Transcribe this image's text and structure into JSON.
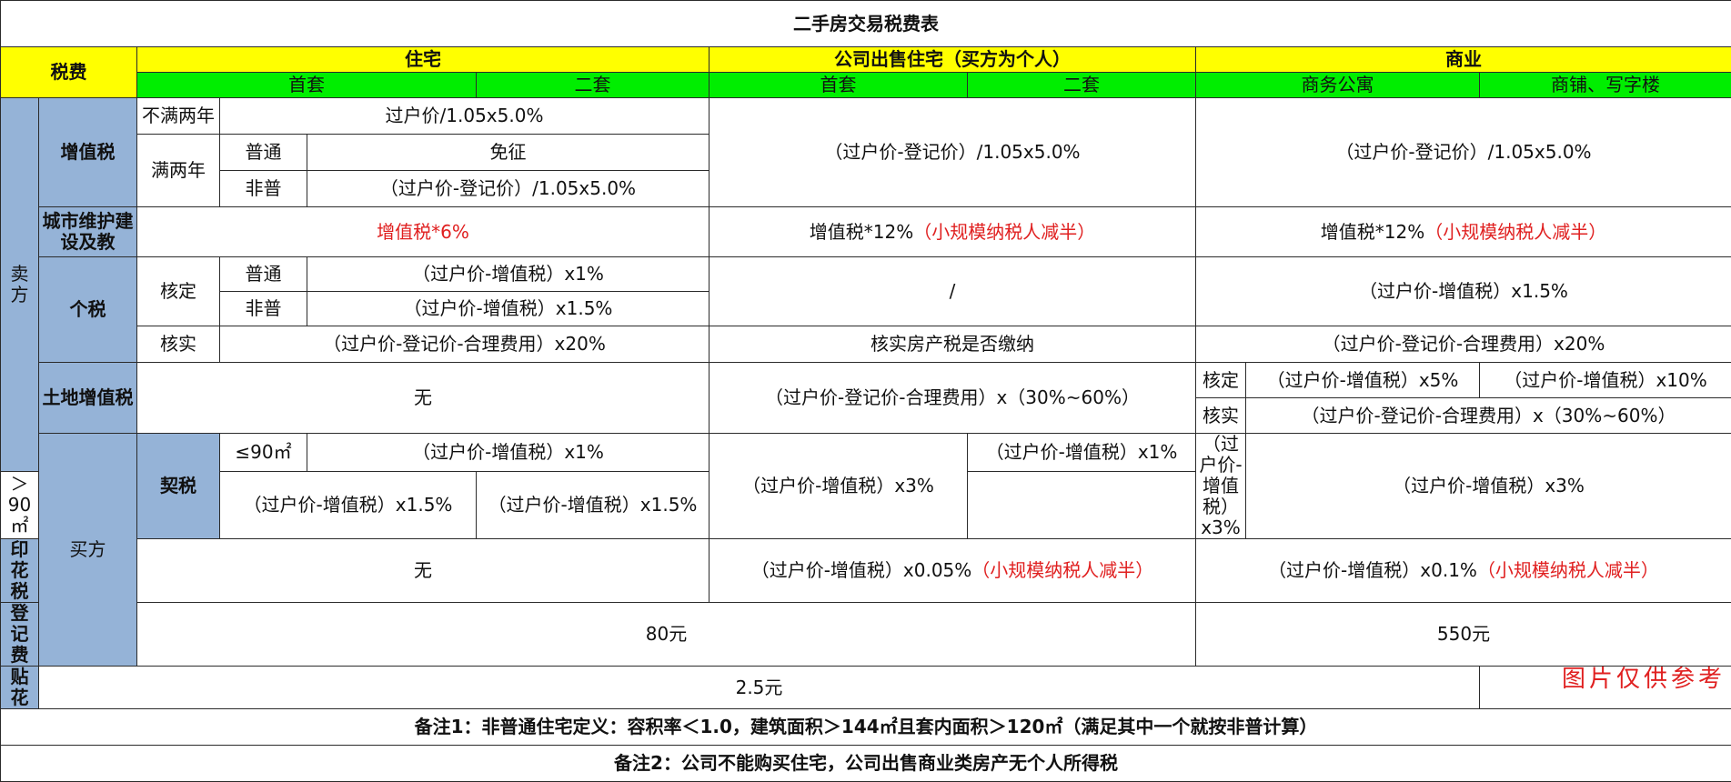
{
  "title": "二手房交易税费表",
  "header": {
    "tax_label": "税费",
    "residential": "住宅",
    "company_sale": "公司出售住宅（买方为个人）",
    "commercial": "商业",
    "first_home": "首套",
    "second_home": "二套",
    "company_first": "首套",
    "company_second": "二套",
    "business_apartment": "商务公寓",
    "shop_office": "商铺、写字楼"
  },
  "side": {
    "seller": "卖方",
    "buyer": "买方"
  },
  "vat": {
    "label": "增值税",
    "under_two": "不满两年",
    "under_two_value": "过户价/1.05x5.0%",
    "over_two": "满两年",
    "normal": "普通",
    "normal_value": "免征",
    "non_normal": "非普",
    "non_normal_value": "（过户价-登记价）/1.05x5.0%",
    "company_value": "（过户价-登记价）/1.05x5.0%",
    "commercial_value": "（过户价-登记价）/1.05x5.0%"
  },
  "city": {
    "label": "城市维护建设及教",
    "residential_value": "增值税*6%",
    "company_value": "增值税*12%",
    "company_note": "（小规模纳税人减半）",
    "commercial_value": "增值税*12%",
    "commercial_note": "（小规模纳税人减半）"
  },
  "income": {
    "label": "个税",
    "assessed": "核定",
    "normal": "普通",
    "normal_value": "（过户价-增值税）x1%",
    "non_normal": "非普",
    "non_normal_value": "（过户价-增值税）x1.5%",
    "company_value": "/",
    "commercial_assessed_value": "（过户价-增值税）x1.5%",
    "verified": "核实",
    "verified_value": "（过户价-登记价-合理费用）x20%",
    "company_verified_value": "核实房产税是否缴纳",
    "commercial_verified_value": "（过户价-登记价-合理费用）x20%"
  },
  "land": {
    "label": "土地增值税",
    "residential_value": "无",
    "company_value": "（过户价-登记价-合理费用）x（30%~60%）",
    "assessed": "核定",
    "assessed_value_1": "（过户价-增值税）x5%",
    "assessed_value_2": "（过户价-增值税）x10%",
    "verified": "核实",
    "verified_value": "（过户价-登记价-合理费用）x（30%~60%）"
  },
  "deed": {
    "label": "契税",
    "small": "≤90㎡",
    "large": "＞90㎡",
    "small_first": "（过户价-增值税）x1%",
    "large_first": "（过户价-增值税）x1.5%",
    "second": "（过户价-增值税）x3%",
    "company_small": "（过户价-增值税）x1%",
    "company_large": "（过户价-增值税）x1.5%",
    "company_second": "（过户价-增值税）x3%",
    "commercial_value": "（过户价-增值税）x3%"
  },
  "stamp": {
    "label": "印花税",
    "residential_value": "无",
    "company_value": "（过户价-增值税）x0.05%",
    "company_note": "（小规模纳税人减半）",
    "commercial_value": "（过户价-增值税）x0.1%",
    "commercial_note": "（小规模纳税人减半）"
  },
  "registration": {
    "label": "登记费",
    "residential_value": "80元",
    "commercial_value": "550元"
  },
  "sticker": {
    "label": "贴花",
    "value": "2.5元"
  },
  "notes": {
    "note1": "备注1：非普通住宅定义：容积率＜1.0，建筑面积＞144㎡且套内面积＞120㎡（满足其中一个就按非普计算）",
    "note2": "备注2：公司不能购买住宅，公司出售商业类房产无个人所得税"
  },
  "watermark": "图片仅供参考"
}
